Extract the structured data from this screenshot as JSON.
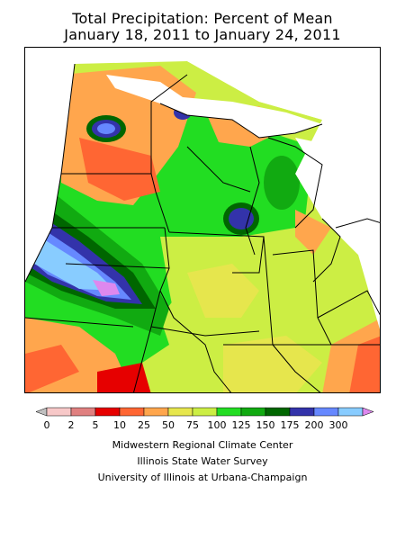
{
  "title": {
    "line1": "Total Precipitation: Percent of Mean",
    "line2": "January 18, 2011 to January 24, 2011"
  },
  "legend": {
    "bins": [
      {
        "label": "",
        "color": "#c0c0c0"
      },
      {
        "label": "0",
        "color": "#f7c8c8"
      },
      {
        "label": "2",
        "color": "#e08080"
      },
      {
        "label": "5",
        "color": "#e60000"
      },
      {
        "label": "10",
        "color": "#ff6633"
      },
      {
        "label": "25",
        "color": "#ffa64d"
      },
      {
        "label": "50",
        "color": "#e6e64d"
      },
      {
        "label": "75",
        "color": "#ccee44"
      },
      {
        "label": "100",
        "color": "#22dd22"
      },
      {
        "label": "125",
        "color": "#11aa11"
      },
      {
        "label": "150",
        "color": "#006600"
      },
      {
        "label": "175",
        "color": "#3333aa"
      },
      {
        "label": "200",
        "color": "#6688ff"
      },
      {
        "label": "300",
        "color": "#88ccff"
      },
      {
        "label": "",
        "color": "#dd88ee"
      }
    ]
  },
  "credits": {
    "line1": "Midwestern Regional Climate Center",
    "line2": "Illinois State Water Survey",
    "line3": "University of Illinois at Urbana-Champaign"
  }
}
